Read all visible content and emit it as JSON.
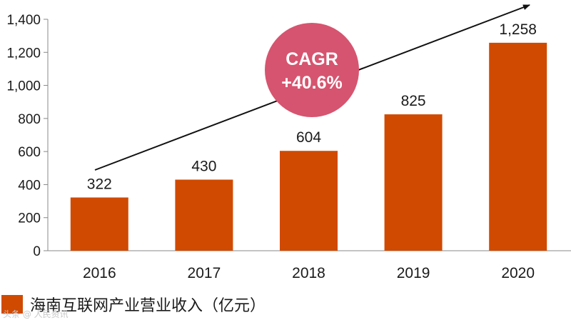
{
  "chart_data": {
    "type": "bar",
    "categories": [
      "2016",
      "2017",
      "2018",
      "2019",
      "2020"
    ],
    "values": [
      322,
      430,
      604,
      825,
      1258
    ],
    "data_labels": [
      "322",
      "430",
      "604",
      "825",
      "1,258"
    ],
    "ylim": [
      0,
      1400
    ],
    "yticks": [
      0,
      200,
      400,
      600,
      800,
      1000,
      1200,
      1400
    ],
    "ytick_labels": [
      "0",
      "200",
      "400",
      "600",
      "800",
      "1,000",
      "1,200",
      "1,400"
    ],
    "grid": false,
    "legend_position": "bottom-left",
    "annotation": {
      "line1": "CAGR",
      "line2": "+40.6%"
    },
    "series": [
      {
        "name": "海南互联网产业营业收入（亿元）",
        "values": [
          322,
          430,
          604,
          825,
          1258
        ]
      }
    ],
    "colors": {
      "bar": "#D04A02",
      "badge": "#D6546F",
      "trend": "#111111",
      "axis": "#888888"
    }
  },
  "legend": {
    "label": "海南互联网产业营业收入（亿元）"
  },
  "watermark": {
    "text": "头条 @ 人民资讯"
  }
}
